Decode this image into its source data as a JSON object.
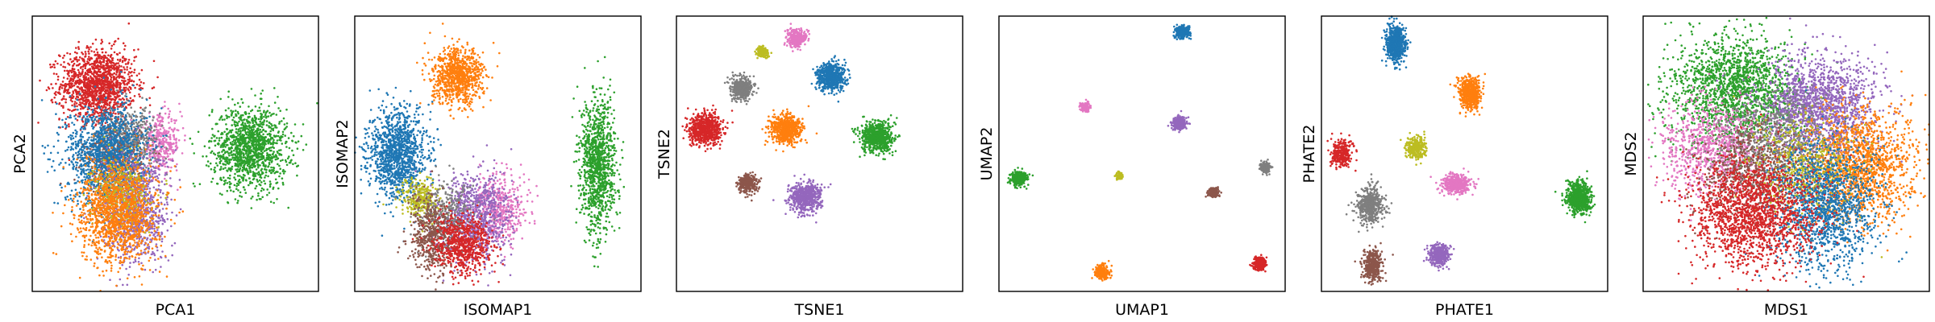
{
  "palette": {
    "blue": "#1f77b4",
    "orange": "#ff7f0e",
    "green": "#2ca02c",
    "red": "#d62728",
    "purple": "#9467bd",
    "brown": "#8c564b",
    "pink": "#e377c2",
    "gray": "#7f7f7f",
    "olive": "#bcbd22"
  },
  "chart_data": [
    {
      "type": "scatter",
      "xlabel": "PCA1",
      "ylabel": "PCA2",
      "xlim": [
        0,
        100
      ],
      "ylim": [
        0,
        100
      ],
      "ticks": "none",
      "grid": false,
      "clusters": [
        {
          "color": "red",
          "x": 23,
          "y": 75,
          "sx": 6.5,
          "sy": 6.5,
          "n": 1400
        },
        {
          "color": "green",
          "x": 76,
          "y": 52,
          "sx": 6.5,
          "sy": 7.5,
          "n": 1300
        },
        {
          "color": "pink",
          "x": 45,
          "y": 54,
          "sx": 3.5,
          "sy": 5,
          "n": 350
        },
        {
          "color": "gray",
          "x": 34,
          "y": 55,
          "sx": 5,
          "sy": 6,
          "n": 500
        },
        {
          "color": "brown",
          "x": 28,
          "y": 48,
          "sx": 5,
          "sy": 6,
          "n": 400
        },
        {
          "color": "blue",
          "x": 26,
          "y": 50,
          "sx": 7,
          "sy": 9,
          "n": 1300
        },
        {
          "color": "purple",
          "x": 36,
          "y": 30,
          "sx": 6,
          "sy": 10,
          "n": 900
        },
        {
          "color": "olive",
          "x": 31,
          "y": 36,
          "sx": 5,
          "sy": 6,
          "n": 350
        },
        {
          "color": "orange",
          "x": 30,
          "y": 28,
          "sx": 7,
          "sy": 9,
          "n": 1300
        }
      ]
    },
    {
      "type": "scatter",
      "xlabel": "ISOMAP1",
      "ylabel": "ISOMAP2",
      "xlim": [
        0,
        100
      ],
      "ylim": [
        0,
        100
      ],
      "ticks": "none",
      "grid": false,
      "clusters": [
        {
          "color": "orange",
          "x": 36,
          "y": 78,
          "sx": 4.5,
          "sy": 5,
          "n": 900
        },
        {
          "color": "green",
          "x": 85,
          "y": 46,
          "sx": 3,
          "sy": 12,
          "n": 1100
        },
        {
          "color": "blue",
          "x": 15,
          "y": 50,
          "sx": 5,
          "sy": 8,
          "n": 1200
        },
        {
          "color": "pink",
          "x": 50,
          "y": 30,
          "sx": 5,
          "sy": 6,
          "n": 500
        },
        {
          "color": "purple",
          "x": 42,
          "y": 27,
          "sx": 6,
          "sy": 8,
          "n": 800
        },
        {
          "color": "olive",
          "x": 23,
          "y": 33,
          "sx": 3.5,
          "sy": 4,
          "n": 300
        },
        {
          "color": "gray",
          "x": 32,
          "y": 28,
          "sx": 5,
          "sy": 6,
          "n": 300
        },
        {
          "color": "brown",
          "x": 27,
          "y": 20,
          "sx": 4,
          "sy": 7,
          "n": 500
        },
        {
          "color": "red",
          "x": 38,
          "y": 17,
          "sx": 5,
          "sy": 5,
          "n": 700
        }
      ]
    },
    {
      "type": "scatter",
      "xlabel": "TSNE1",
      "ylabel": "TSNE2",
      "xlim": [
        0,
        100
      ],
      "ylim": [
        0,
        100
      ],
      "ticks": "none",
      "grid": false,
      "clusters": [
        {
          "color": "pink",
          "x": 42,
          "y": 92,
          "sx": 1.6,
          "sy": 1.6,
          "n": 300
        },
        {
          "color": "olive",
          "x": 30,
          "y": 87,
          "sx": 1.1,
          "sy": 1.1,
          "n": 150
        },
        {
          "color": "blue",
          "x": 54,
          "y": 78,
          "sx": 2.5,
          "sy": 2.5,
          "n": 600
        },
        {
          "color": "gray",
          "x": 23,
          "y": 74,
          "sx": 2,
          "sy": 2,
          "n": 400
        },
        {
          "color": "red",
          "x": 10,
          "y": 59,
          "sx": 2.8,
          "sy": 2.8,
          "n": 700
        },
        {
          "color": "orange",
          "x": 38,
          "y": 59,
          "sx": 2.6,
          "sy": 2.6,
          "n": 700
        },
        {
          "color": "green",
          "x": 70,
          "y": 56,
          "sx": 2.8,
          "sy": 2.8,
          "n": 700
        },
        {
          "color": "brown",
          "x": 25,
          "y": 39,
          "sx": 1.7,
          "sy": 1.7,
          "n": 300
        },
        {
          "color": "purple",
          "x": 45,
          "y": 34,
          "sx": 2.7,
          "sy": 2.7,
          "n": 600
        }
      ]
    },
    {
      "type": "scatter",
      "xlabel": "UMAP1",
      "ylabel": "UMAP2",
      "xlim": [
        0,
        100
      ],
      "ylim": [
        0,
        100
      ],
      "ticks": "none",
      "grid": false,
      "clusters": [
        {
          "color": "blue",
          "x": 64,
          "y": 94,
          "sx": 1.2,
          "sy": 1.2,
          "n": 300
        },
        {
          "color": "pink",
          "x": 30,
          "y": 67,
          "sx": 0.8,
          "sy": 0.8,
          "n": 150
        },
        {
          "color": "purple",
          "x": 63,
          "y": 61,
          "sx": 1.2,
          "sy": 1.2,
          "n": 300
        },
        {
          "color": "gray",
          "x": 93,
          "y": 45,
          "sx": 0.9,
          "sy": 0.9,
          "n": 200
        },
        {
          "color": "green",
          "x": 7,
          "y": 41,
          "sx": 1.3,
          "sy": 1.3,
          "n": 300
        },
        {
          "color": "olive",
          "x": 42,
          "y": 42,
          "sx": 0.6,
          "sy": 0.6,
          "n": 80
        },
        {
          "color": "brown",
          "x": 75,
          "y": 36,
          "sx": 0.9,
          "sy": 0.9,
          "n": 200
        },
        {
          "color": "red",
          "x": 91,
          "y": 10,
          "sx": 1.1,
          "sy": 1.1,
          "n": 300
        },
        {
          "color": "orange",
          "x": 36,
          "y": 7,
          "sx": 1.2,
          "sy": 1.2,
          "n": 300
        }
      ]
    },
    {
      "type": "scatter",
      "xlabel": "PHATE1",
      "ylabel": "PHATE2",
      "xlim": [
        0,
        100
      ],
      "ylim": [
        0,
        100
      ],
      "ticks": "none",
      "grid": false,
      "clusters": [
        {
          "color": "blue",
          "x": 26,
          "y": 90,
          "sx": 1.6,
          "sy": 3,
          "n": 700
        },
        {
          "color": "orange",
          "x": 52,
          "y": 72,
          "sx": 1.8,
          "sy": 2.8,
          "n": 600
        },
        {
          "color": "red",
          "x": 7,
          "y": 50,
          "sx": 1.8,
          "sy": 2.5,
          "n": 300
        },
        {
          "color": "olive",
          "x": 33,
          "y": 52,
          "sx": 1.8,
          "sy": 2,
          "n": 300
        },
        {
          "color": "pink",
          "x": 47,
          "y": 39,
          "sx": 2.4,
          "sy": 1.6,
          "n": 450
        },
        {
          "color": "green",
          "x": 90,
          "y": 34,
          "sx": 2,
          "sy": 3,
          "n": 700
        },
        {
          "color": "gray",
          "x": 17,
          "y": 31,
          "sx": 2.2,
          "sy": 3.2,
          "n": 500
        },
        {
          "color": "purple",
          "x": 41,
          "y": 13,
          "sx": 1.8,
          "sy": 1.8,
          "n": 400
        },
        {
          "color": "brown",
          "x": 18,
          "y": 9,
          "sx": 1.6,
          "sy": 2.8,
          "n": 400
        }
      ]
    },
    {
      "type": "scatter",
      "xlabel": "MDS1",
      "ylabel": "MDS2",
      "xlim": [
        0,
        100
      ],
      "ylim": [
        0,
        100
      ],
      "ticks": "none",
      "grid": false,
      "clusters": [
        {
          "color": "green",
          "x": 32,
          "y": 73,
          "sx": 11,
          "sy": 10,
          "n": 1700
        },
        {
          "color": "purple",
          "x": 62,
          "y": 68,
          "sx": 10,
          "sy": 9,
          "n": 1500
        },
        {
          "color": "orange",
          "x": 75,
          "y": 45,
          "sx": 10,
          "sy": 10,
          "n": 1600
        },
        {
          "color": "pink",
          "x": 24,
          "y": 53,
          "sx": 9,
          "sy": 8,
          "n": 900
        },
        {
          "color": "gray",
          "x": 47,
          "y": 55,
          "sx": 9,
          "sy": 9,
          "n": 700
        },
        {
          "color": "brown",
          "x": 38,
          "y": 43,
          "sx": 9,
          "sy": 9,
          "n": 600
        },
        {
          "color": "olive",
          "x": 56,
          "y": 45,
          "sx": 9,
          "sy": 9,
          "n": 500
        },
        {
          "color": "blue",
          "x": 64,
          "y": 30,
          "sx": 9,
          "sy": 11,
          "n": 1400
        },
        {
          "color": "red",
          "x": 38,
          "y": 28,
          "sx": 11,
          "sy": 10,
          "n": 1700
        }
      ]
    }
  ]
}
